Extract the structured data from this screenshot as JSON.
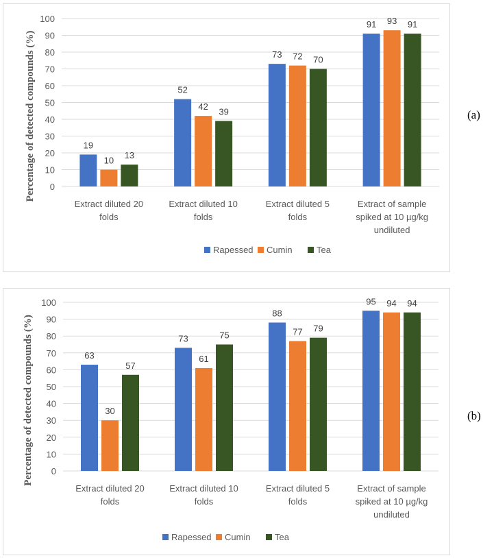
{
  "chart_data": [
    {
      "type": "bar",
      "panel_label": "(a)",
      "title": "",
      "xlabel": "",
      "ylabel": "Percentage of detected compounds (%)",
      "ylim": [
        0,
        100
      ],
      "yticks": [
        0,
        10,
        20,
        30,
        40,
        50,
        60,
        70,
        80,
        90,
        100
      ],
      "grid": true,
      "legend": "bottom",
      "categories": [
        [
          "Extract diluted 20",
          "folds"
        ],
        [
          "Extract diluted 10",
          "folds"
        ],
        [
          "Extract diluted 5",
          "folds"
        ],
        [
          "Extract of sample",
          "spiked at 10 µg/kg",
          "undiluted"
        ]
      ],
      "series": [
        {
          "name": "Rapessed",
          "color": "#4472c4",
          "values": [
            19,
            52,
            73,
            91
          ]
        },
        {
          "name": "Cumin",
          "color": "#ed7d31",
          "values": [
            10,
            42,
            72,
            93
          ]
        },
        {
          "name": "Tea",
          "color": "#375623",
          "values": [
            13,
            39,
            70,
            91
          ]
        }
      ]
    },
    {
      "type": "bar",
      "panel_label": "(b)",
      "title": "",
      "xlabel": "",
      "ylabel": "Percentage of detected compounds (%)",
      "ylim": [
        0,
        100
      ],
      "yticks": [
        0,
        10,
        20,
        30,
        40,
        50,
        60,
        70,
        80,
        90,
        100
      ],
      "grid": true,
      "legend": "bottom",
      "categories": [
        [
          "Extract diluted 20",
          "folds"
        ],
        [
          "Extract diluted 10",
          "folds"
        ],
        [
          "Extract diluted 5",
          "folds"
        ],
        [
          "Extract of sample",
          "spiked at 10 µg/kg",
          "undiluted"
        ]
      ],
      "series": [
        {
          "name": "Rapessed",
          "color": "#4472c4",
          "values": [
            63,
            73,
            88,
            95
          ]
        },
        {
          "name": "Cumin",
          "color": "#ed7d31",
          "values": [
            30,
            61,
            77,
            94
          ]
        },
        {
          "name": "Tea",
          "color": "#375623",
          "values": [
            57,
            75,
            79,
            94
          ]
        }
      ]
    }
  ]
}
